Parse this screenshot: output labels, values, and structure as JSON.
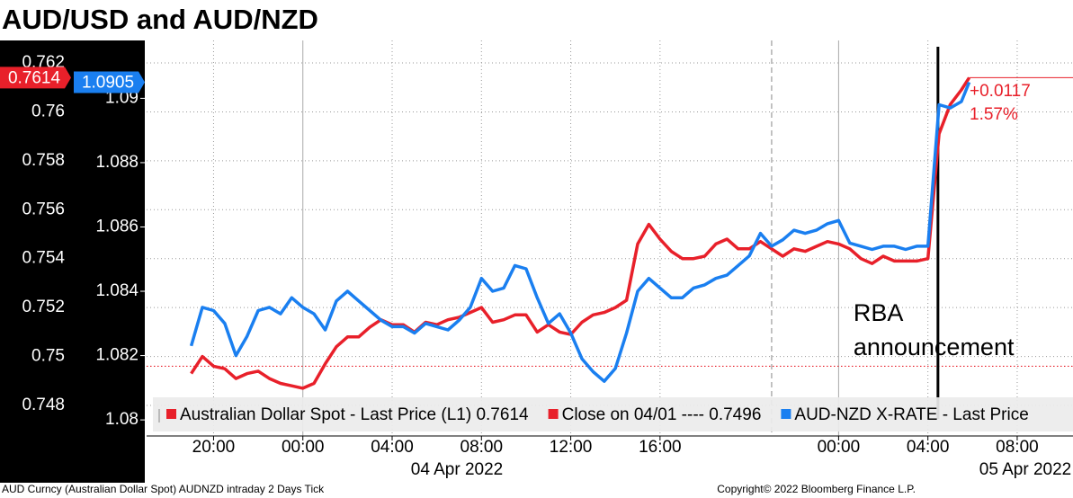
{
  "chart_data": {
    "type": "line",
    "title": "AUD/USD and AUD/NZD",
    "x": [
      -5,
      -4.5,
      -4,
      -3.5,
      -3,
      -2.5,
      -2,
      -1.5,
      -1,
      -0.5,
      0,
      0.5,
      1,
      1.5,
      2,
      2.5,
      3,
      3.5,
      4,
      4.5,
      5,
      5.5,
      6,
      6.5,
      7,
      7.5,
      8,
      8.5,
      9,
      9.5,
      10,
      10.5,
      11,
      11.5,
      12,
      12.5,
      13,
      13.5,
      14,
      14.5,
      15,
      15.5,
      16,
      16.5,
      17,
      17.5,
      18,
      18.5,
      19,
      19.5,
      20,
      20.5,
      21,
      21.5,
      22,
      22.5,
      23,
      23.5,
      24,
      24.5,
      25,
      25.5,
      26,
      26.5,
      27,
      27.5,
      28,
      28.5,
      29,
      29.5,
      29.85
    ],
    "xlim": [
      -7,
      34.5
    ],
    "xticks": [
      {
        "value": -4,
        "label": "20:00"
      },
      {
        "value": 0,
        "label": "00:00"
      },
      {
        "value": 4,
        "label": "04:00"
      },
      {
        "value": 8,
        "label": "08:00"
      },
      {
        "value": 12,
        "label": "12:00"
      },
      {
        "value": 16,
        "label": "16:00"
      },
      {
        "value": 24,
        "label": "00:00"
      },
      {
        "value": 28,
        "label": "04:00"
      },
      {
        "value": 32,
        "label": "08:00"
      }
    ],
    "date_labels": [
      "04 Apr 2022",
      "05 Apr 2022"
    ],
    "ylim": [
      0.74675,
      0.76292
    ],
    "yticks": [
      0.748,
      0.75,
      0.752,
      0.754,
      0.756,
      0.758,
      0.76,
      0.762
    ],
    "y2lim": [
      1.0795,
      1.0918
    ],
    "y2ticks": [
      1.08,
      1.082,
      1.084,
      1.086,
      1.088,
      1.09
    ],
    "grid": true,
    "series": [
      {
        "name": "Australian Dollar Spot - Last Price (L1) 0.7614",
        "color": "#e8202a",
        "axis": "y",
        "values": [
          0.7493,
          0.75,
          0.7496,
          0.7495,
          0.7491,
          0.7493,
          0.7494,
          0.7491,
          0.7489,
          0.7488,
          0.7487,
          0.7489,
          0.7497,
          0.7504,
          0.7508,
          0.7508,
          0.7512,
          0.7515,
          0.7513,
          0.7513,
          0.751,
          0.7514,
          0.7513,
          0.7515,
          0.7516,
          0.7518,
          0.752,
          0.7514,
          0.7515,
          0.7517,
          0.7517,
          0.751,
          0.7513,
          0.751,
          0.7509,
          0.7514,
          0.7517,
          0.7518,
          0.752,
          0.7523,
          0.7546,
          0.7554,
          0.7548,
          0.7543,
          0.754,
          0.754,
          0.7541,
          0.7546,
          0.7548,
          0.7544,
          0.7544,
          0.7547,
          0.7544,
          0.7541,
          0.7544,
          0.7543,
          0.7545,
          0.7547,
          0.7546,
          0.7544,
          0.754,
          0.7538,
          0.7541,
          0.7539,
          0.7539,
          0.7539,
          0.754,
          0.7591,
          0.7603,
          0.7609,
          0.7614
        ]
      },
      {
        "name": "AUD-NZD X-RATE - Last Price",
        "color": "#1a7ff0",
        "axis": "y2",
        "values": [
          1.0823,
          1.0835,
          1.0834,
          1.083,
          1.082,
          1.0826,
          1.0834,
          1.0835,
          1.0833,
          1.0838,
          1.0835,
          1.0833,
          1.0828,
          1.0837,
          1.084,
          1.0837,
          1.0834,
          1.0831,
          1.0829,
          1.0829,
          1.0827,
          1.083,
          1.0829,
          1.0828,
          1.0831,
          1.0835,
          1.0844,
          1.084,
          1.0841,
          1.0848,
          1.0847,
          1.0838,
          1.083,
          1.0833,
          1.0827,
          1.0819,
          1.0815,
          1.0812,
          1.0816,
          1.0827,
          1.084,
          1.0844,
          1.0841,
          1.0838,
          1.0838,
          1.0841,
          1.0842,
          1.0844,
          1.0845,
          1.0848,
          1.0851,
          1.0858,
          1.0854,
          1.0856,
          1.0859,
          1.0858,
          1.0859,
          1.0861,
          1.0862,
          1.0855,
          1.0854,
          1.0853,
          1.0854,
          1.0854,
          1.0853,
          1.0854,
          1.0854,
          1.0898,
          1.0897,
          1.0899,
          1.0905
        ]
      }
    ],
    "reference_line": {
      "name": "Close on 04/01 ---- 0.7496",
      "value": 0.7496,
      "color": "#e8202a"
    },
    "change_labels": [
      "+0.0117",
      "1.57%"
    ],
    "event": {
      "x": 28.45,
      "lines": [
        "RBA",
        "announcement"
      ]
    },
    "day_divider": 21,
    "footer": {
      "left": "AUD Curncy (Australian Dollar Spot) AUDNZD intraday 2 Days  Tick",
      "right": "Copyright© 2022 Bloomberg Finance L.P."
    }
  }
}
